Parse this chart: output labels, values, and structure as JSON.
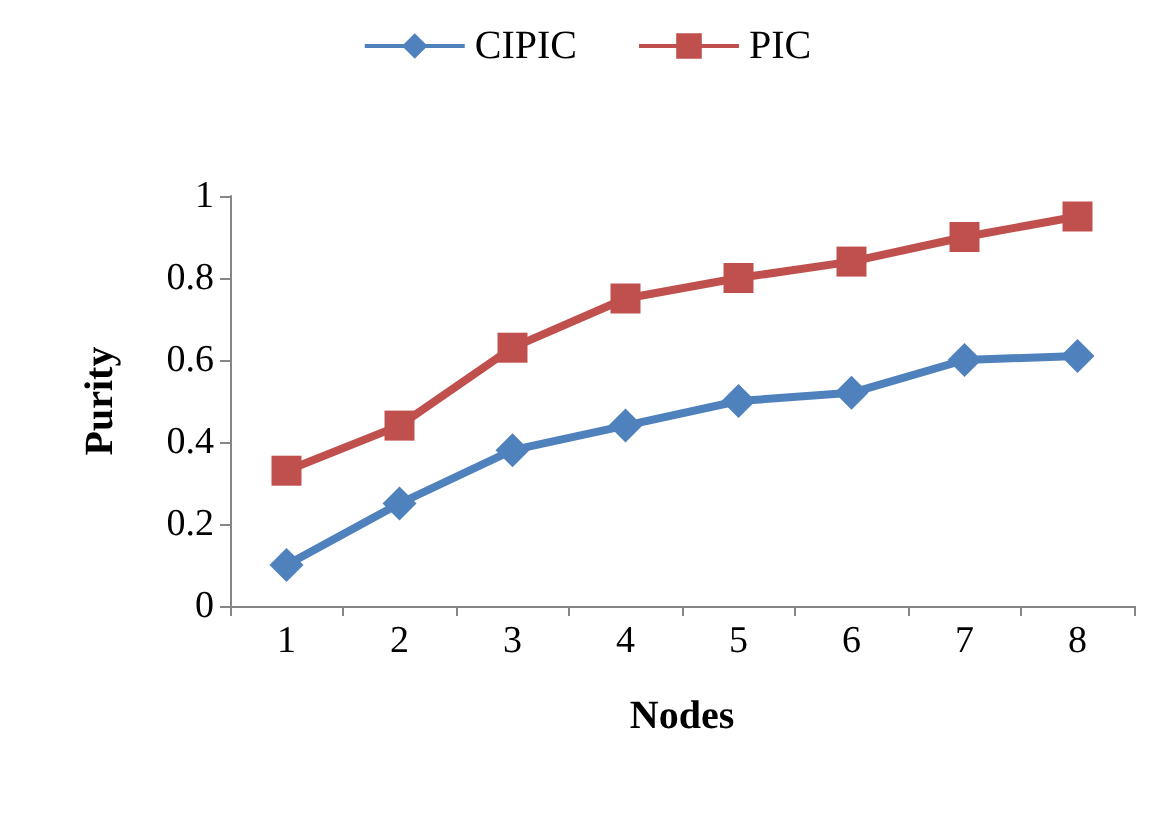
{
  "chart_data": {
    "type": "line",
    "xlabel": "Nodes",
    "ylabel": "Purity",
    "categories": [
      "1",
      "2",
      "3",
      "4",
      "5",
      "6",
      "7",
      "8"
    ],
    "series": [
      {
        "name": "CIPIC",
        "color": "#4f81bd",
        "marker": "diamond",
        "values": [
          0.1,
          0.25,
          0.38,
          0.44,
          0.5,
          0.52,
          0.6,
          0.61
        ]
      },
      {
        "name": "PIC",
        "color": "#c0504d",
        "marker": "square",
        "values": [
          0.33,
          0.44,
          0.63,
          0.75,
          0.8,
          0.84,
          0.9,
          0.95
        ]
      }
    ],
    "ylim": [
      0,
      1
    ],
    "yticks": [
      0,
      0.2,
      0.4,
      0.6,
      0.8,
      1
    ],
    "grid": false,
    "legend": "top",
    "line_style": "solid"
  }
}
